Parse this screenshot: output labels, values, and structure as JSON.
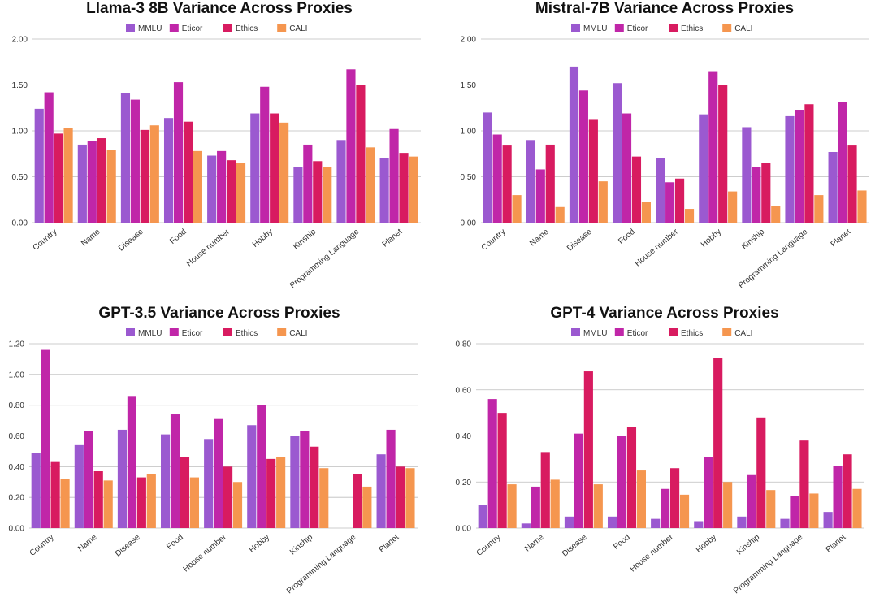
{
  "colors": {
    "MMLU": "#9b59d0",
    "Eticor": "#c026a8",
    "Ethics": "#d81b60",
    "CALI": "#f5964f",
    "grid": "#bdbdbd",
    "axis_text": "#333333",
    "title": "#111111"
  },
  "chart_data": [
    {
      "type": "bar",
      "title": "Llama-3 8B Variance Across Proxies",
      "xlabel": "",
      "ylabel": "",
      "ylim": [
        0,
        2
      ],
      "yticks": [
        "0.00",
        "0.50",
        "1.00",
        "1.50",
        "2.00"
      ],
      "ytick_values": [
        0,
        0.5,
        1,
        1.5,
        2
      ],
      "categories": [
        "Country",
        "Name",
        "Disease",
        "Food",
        "House number",
        "Hobby",
        "Kinship",
        "Programming Language",
        "Planet"
      ],
      "series": [
        {
          "name": "MMLU",
          "values": [
            1.24,
            0.85,
            1.41,
            1.14,
            0.73,
            1.19,
            0.61,
            0.9,
            0.7
          ]
        },
        {
          "name": "Eticor",
          "values": [
            1.42,
            0.89,
            1.34,
            1.53,
            0.78,
            1.48,
            0.85,
            1.67,
            1.02
          ]
        },
        {
          "name": "Ethics",
          "values": [
            0.97,
            0.92,
            1.01,
            1.1,
            0.68,
            1.19,
            0.67,
            1.5,
            0.76
          ]
        },
        {
          "name": "CALI",
          "values": [
            1.03,
            0.79,
            1.06,
            0.78,
            0.65,
            1.09,
            0.61,
            0.82,
            0.72
          ]
        }
      ]
    },
    {
      "type": "bar",
      "title": "Mistral-7B Variance Across Proxies",
      "xlabel": "",
      "ylabel": "",
      "ylim": [
        0,
        2
      ],
      "yticks": [
        "0.00",
        "0.50",
        "1.00",
        "1.50",
        "2.00"
      ],
      "ytick_values": [
        0,
        0.5,
        1,
        1.5,
        2
      ],
      "categories": [
        "Country",
        "Name",
        "Disease",
        "Food",
        "House number",
        "Hobby",
        "Kinship",
        "Programming Language",
        "Planet"
      ],
      "series": [
        {
          "name": "MMLU",
          "values": [
            1.2,
            0.9,
            1.7,
            1.52,
            0.7,
            1.18,
            1.04,
            1.16,
            0.77
          ]
        },
        {
          "name": "Eticor",
          "values": [
            0.96,
            0.58,
            1.44,
            1.19,
            0.44,
            1.65,
            0.61,
            1.23,
            1.31
          ]
        },
        {
          "name": "Ethics",
          "values": [
            0.84,
            0.85,
            1.12,
            0.72,
            0.48,
            1.5,
            0.65,
            1.29,
            0.84
          ]
        },
        {
          "name": "CALI",
          "values": [
            0.3,
            0.17,
            0.45,
            0.23,
            0.15,
            0.34,
            0.18,
            0.3,
            0.35
          ]
        }
      ]
    },
    {
      "type": "bar",
      "title": "GPT-3.5 Variance Across Proxies",
      "xlabel": "",
      "ylabel": "",
      "ylim": [
        0,
        1.2
      ],
      "yticks": [
        "0.00",
        "0.20",
        "0.40",
        "0.60",
        "0.80",
        "1.00",
        "1.20"
      ],
      "ytick_values": [
        0,
        0.2,
        0.4,
        0.6,
        0.8,
        1.0,
        1.2
      ],
      "categories": [
        "Country",
        "Name",
        "Disease",
        "Food",
        "House number",
        "Hobby",
        "Kinship",
        "Programming Language",
        "Planet"
      ],
      "series": [
        {
          "name": "MMLU",
          "values": [
            0.49,
            0.54,
            0.64,
            0.61,
            0.58,
            0.67,
            0.6,
            0.0,
            0.48
          ]
        },
        {
          "name": "Eticor",
          "values": [
            1.16,
            0.63,
            0.86,
            0.74,
            0.71,
            0.8,
            0.63,
            0.0,
            0.64
          ]
        },
        {
          "name": "Ethics",
          "values": [
            0.43,
            0.37,
            0.33,
            0.46,
            0.4,
            0.45,
            0.53,
            0.35,
            0.4
          ]
        },
        {
          "name": "CALI",
          "values": [
            0.32,
            0.31,
            0.35,
            0.33,
            0.3,
            0.46,
            0.39,
            0.27,
            0.39
          ]
        }
      ]
    },
    {
      "type": "bar",
      "title": "GPT-4 Variance Across Proxies",
      "xlabel": "",
      "ylabel": "",
      "ylim": [
        0,
        0.8
      ],
      "yticks": [
        "0.00",
        "0.20",
        "0.40",
        "0.60",
        "0.80"
      ],
      "ytick_values": [
        0,
        0.2,
        0.4,
        0.6,
        0.8
      ],
      "categories": [
        "Country",
        "Name",
        "Disease",
        "Food",
        "House number",
        "Hobby",
        "Kinship",
        "Programming Language",
        "Planet"
      ],
      "series": [
        {
          "name": "MMLU",
          "values": [
            0.1,
            0.02,
            0.05,
            0.05,
            0.04,
            0.03,
            0.05,
            0.04,
            0.07
          ]
        },
        {
          "name": "Eticor",
          "values": [
            0.56,
            0.18,
            0.41,
            0.4,
            0.17,
            0.31,
            0.23,
            0.14,
            0.27
          ]
        },
        {
          "name": "Ethics",
          "values": [
            0.5,
            0.33,
            0.68,
            0.44,
            0.26,
            0.74,
            0.48,
            0.38,
            0.32
          ]
        },
        {
          "name": "CALI",
          "values": [
            0.19,
            0.21,
            0.19,
            0.25,
            0.145,
            0.2,
            0.165,
            0.15,
            0.17
          ]
        }
      ]
    }
  ]
}
